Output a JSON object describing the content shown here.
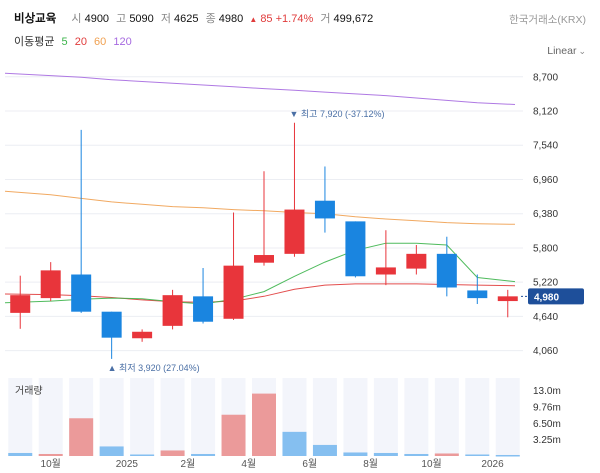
{
  "header": {
    "name": "비상교육",
    "open_label": "시",
    "open": "4900",
    "high_label": "고",
    "high": "5090",
    "low_label": "저",
    "low": "4625",
    "close_label": "종",
    "close": "4980",
    "change_arrow": "▲",
    "change": "85",
    "change_pct": "+1.74%",
    "volume_label": "거",
    "volume": "499,672",
    "source": "한국거래소(KRX)"
  },
  "ma_legend": {
    "label": "이동평균",
    "items": [
      {
        "period": "5",
        "color": "#3cb44b"
      },
      {
        "period": "20",
        "color": "#e03b3b"
      },
      {
        "period": "60",
        "color": "#f0a050"
      },
      {
        "period": "120",
        "color": "#a66ae0"
      }
    ]
  },
  "scale_toggle": {
    "label": "Linear",
    "chevron": "⌄"
  },
  "volume_panel_title": "거래량",
  "chart_data": {
    "type": "candlestick",
    "price_axis": {
      "ticks": [
        8700,
        8120,
        7540,
        6960,
        6380,
        5800,
        5220,
        4640,
        4060
      ],
      "tick_labels": [
        "8,700",
        "8,120",
        "7,540",
        "6,960",
        "6,380",
        "5,800",
        "5,220",
        "4,640",
        "4,060"
      ],
      "ylim": [
        3800,
        8950
      ]
    },
    "current_price": {
      "value": 4980,
      "label": "4,980",
      "color": "#1e4f9a"
    },
    "x_labels": [
      {
        "label": "10월",
        "index": 1
      },
      {
        "label": "2025",
        "index": 3.5
      },
      {
        "label": "2월",
        "index": 5.5
      },
      {
        "label": "4월",
        "index": 7.5
      },
      {
        "label": "6월",
        "index": 9.5
      },
      {
        "label": "8월",
        "index": 11.5
      },
      {
        "label": "10월",
        "index": 13.5
      },
      {
        "label": "2026",
        "index": 15.5
      }
    ],
    "candles": [
      {
        "open": 4700,
        "high": 5330,
        "low": 4430,
        "close": 5000
      },
      {
        "open": 4950,
        "high": 5560,
        "low": 4900,
        "close": 5420
      },
      {
        "open": 5350,
        "high": 7800,
        "low": 4700,
        "close": 4720
      },
      {
        "open": 4720,
        "high": 4720,
        "low": 3920,
        "close": 4280
      },
      {
        "open": 4270,
        "high": 4420,
        "low": 4210,
        "close": 4380
      },
      {
        "open": 4480,
        "high": 5090,
        "low": 4420,
        "close": 5000
      },
      {
        "open": 4980,
        "high": 5460,
        "low": 4520,
        "close": 4550
      },
      {
        "open": 4600,
        "high": 6400,
        "low": 4580,
        "close": 5500
      },
      {
        "open": 5550,
        "high": 7100,
        "low": 5500,
        "close": 5680
      },
      {
        "open": 5700,
        "high": 7920,
        "low": 5650,
        "close": 6450
      },
      {
        "open": 6600,
        "high": 7180,
        "low": 6060,
        "close": 6300
      },
      {
        "open": 6250,
        "high": 6250,
        "low": 5300,
        "close": 5320
      },
      {
        "open": 5350,
        "high": 6100,
        "low": 5170,
        "close": 5470
      },
      {
        "open": 5450,
        "high": 5850,
        "low": 5350,
        "close": 5700
      },
      {
        "open": 5700,
        "high": 5990,
        "low": 4980,
        "close": 5130
      },
      {
        "open": 5080,
        "high": 5350,
        "low": 4850,
        "close": 4950
      },
      {
        "open": 4900,
        "high": 5090,
        "low": 4625,
        "close": 4980
      }
    ],
    "ma5": [
      4870,
      4900,
      4930,
      4950,
      4940,
      4890,
      4850,
      4930,
      5060,
      5320,
      5560,
      5760,
      5880,
      5880,
      5850,
      5300,
      5230
    ],
    "ma20": [
      5020,
      5010,
      4990,
      4960,
      4920,
      4890,
      4880,
      4900,
      4980,
      5100,
      5170,
      5190,
      5190,
      5190,
      5180,
      5170,
      5160
    ],
    "ma60": [
      6760,
      6700,
      6640,
      6580,
      6540,
      6500,
      6480,
      6450,
      6430,
      6400,
      6380,
      6330,
      6290,
      6260,
      6230,
      6210,
      6200
    ],
    "ma120": [
      8760,
      8720,
      8690,
      8650,
      8620,
      8590,
      8560,
      8530,
      8500,
      8470,
      8440,
      8410,
      8380,
      8340,
      8300,
      8260,
      8230
    ],
    "annotations": {
      "high": {
        "text": "최고 7,920 (-37.12%)",
        "arrow": "▼",
        "index": 9,
        "value": 7920
      },
      "low": {
        "text": "최저 3,920 (27.04%)",
        "arrow": "▲",
        "index": 3,
        "value": 3920
      }
    },
    "volume_axis": {
      "ticks": [
        13.0,
        9.76,
        6.5,
        3.25
      ],
      "tick_labels": [
        "13.0m",
        "9.76m",
        "6.50m",
        "3.25m"
      ],
      "max": 15.5
    },
    "volume": [
      {
        "value": 0.6,
        "up": false
      },
      {
        "value": 0.4,
        "up": true
      },
      {
        "value": 7.5,
        "up": true
      },
      {
        "value": 1.9,
        "up": false
      },
      {
        "value": 0.3,
        "up": false
      },
      {
        "value": 1.1,
        "up": true
      },
      {
        "value": 0.4,
        "up": false
      },
      {
        "value": 8.2,
        "up": true
      },
      {
        "value": 12.4,
        "up": true
      },
      {
        "value": 4.8,
        "up": false
      },
      {
        "value": 2.2,
        "up": false
      },
      {
        "value": 0.7,
        "up": false
      },
      {
        "value": 0.6,
        "up": false
      },
      {
        "value": 0.4,
        "up": false
      },
      {
        "value": 0.5,
        "up": true
      },
      {
        "value": 0.3,
        "up": false
      },
      {
        "value": 0.2,
        "up": false
      }
    ],
    "colors": {
      "up": "#e8353b",
      "down": "#1a85e0",
      "up_vol": "#eb9a9a",
      "down_vol": "#85bff0",
      "col_bg": "#f3f5fb"
    }
  }
}
